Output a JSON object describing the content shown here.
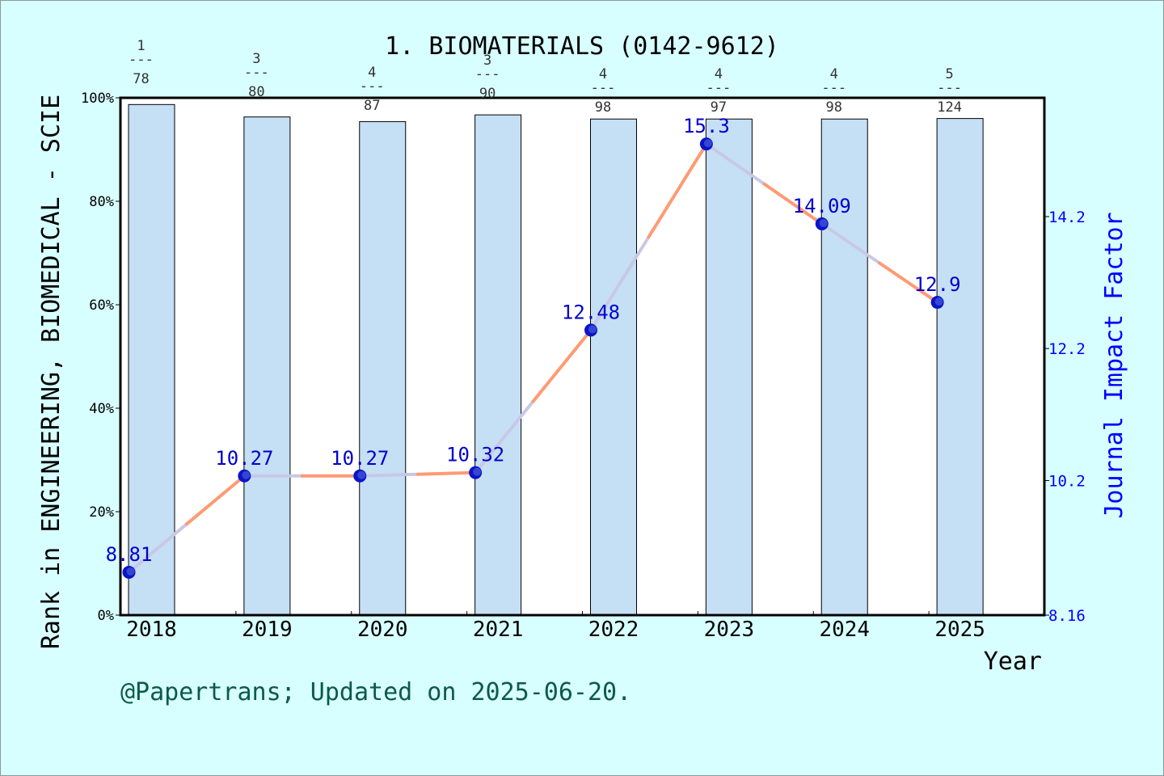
{
  "chart_data": {
    "type": "bar",
    "title": "1. BIOMATERIALS (0142-9612)",
    "xlabel": "Year",
    "ylabel_left": "Rank in ENGINEERING, BIOMEDICAL - SCIE",
    "ylabel_right": "Journal Impact Factor",
    "footer": "@Papertrans; Updated on 2025-06-20.",
    "categories": [
      "2018",
      "2019",
      "2020",
      "2021",
      "2022",
      "2023",
      "2024",
      "2025"
    ],
    "left_axis": {
      "ylim": [
        0,
        100
      ],
      "ticks": [
        "0%",
        "20%",
        "40%",
        "60%",
        "80%",
        "100%"
      ],
      "tick_values": [
        0,
        20,
        40,
        60,
        80,
        100
      ]
    },
    "right_axis": {
      "ylim": [
        8.16,
        16.0
      ],
      "ticks": [
        "8.16",
        "10.2",
        "12.2",
        "14.2"
      ],
      "tick_values": [
        8.16,
        10.2,
        12.2,
        14.2
      ]
    },
    "series": [
      {
        "kind": "bar",
        "axis": "left",
        "values": [
          98.7,
          96.3,
          95.4,
          96.7,
          95.9,
          95.9,
          95.9,
          96.0
        ],
        "rank_labels": [
          {
            "num": "1",
            "sep": "---",
            "den": "78"
          },
          {
            "num": "3",
            "sep": "---",
            "den": "80"
          },
          {
            "num": "4",
            "sep": "---",
            "den": "87"
          },
          {
            "num": "3",
            "sep": "---",
            "den": "90"
          },
          {
            "num": "4",
            "sep": "---",
            "den": "98"
          },
          {
            "num": "4",
            "sep": "---",
            "den": "97"
          },
          {
            "num": "4",
            "sep": "---",
            "den": "98"
          },
          {
            "num": "5",
            "sep": "---",
            "den": "124"
          }
        ]
      },
      {
        "kind": "line",
        "axis": "right",
        "values": [
          8.81,
          10.27,
          10.27,
          10.32,
          12.48,
          15.3,
          14.09,
          12.9
        ],
        "labels": [
          "8.81",
          "10.27",
          "10.27",
          "10.32",
          "12.48",
          "15.3",
          "14.09",
          "12.9"
        ]
      }
    ],
    "colors": {
      "background": "#d8ffff",
      "plot_bg": "#ffffff",
      "bar_fill": "#c5dff5",
      "line": "#ff9a73",
      "line_overlap": "#c8c8e6",
      "marker": "#0a14c8",
      "jif_text": "#0000cc",
      "jif_text_overlap": "#8aa0f0",
      "right_axis": "#0000ff",
      "footer": "#0b5a4a"
    }
  }
}
